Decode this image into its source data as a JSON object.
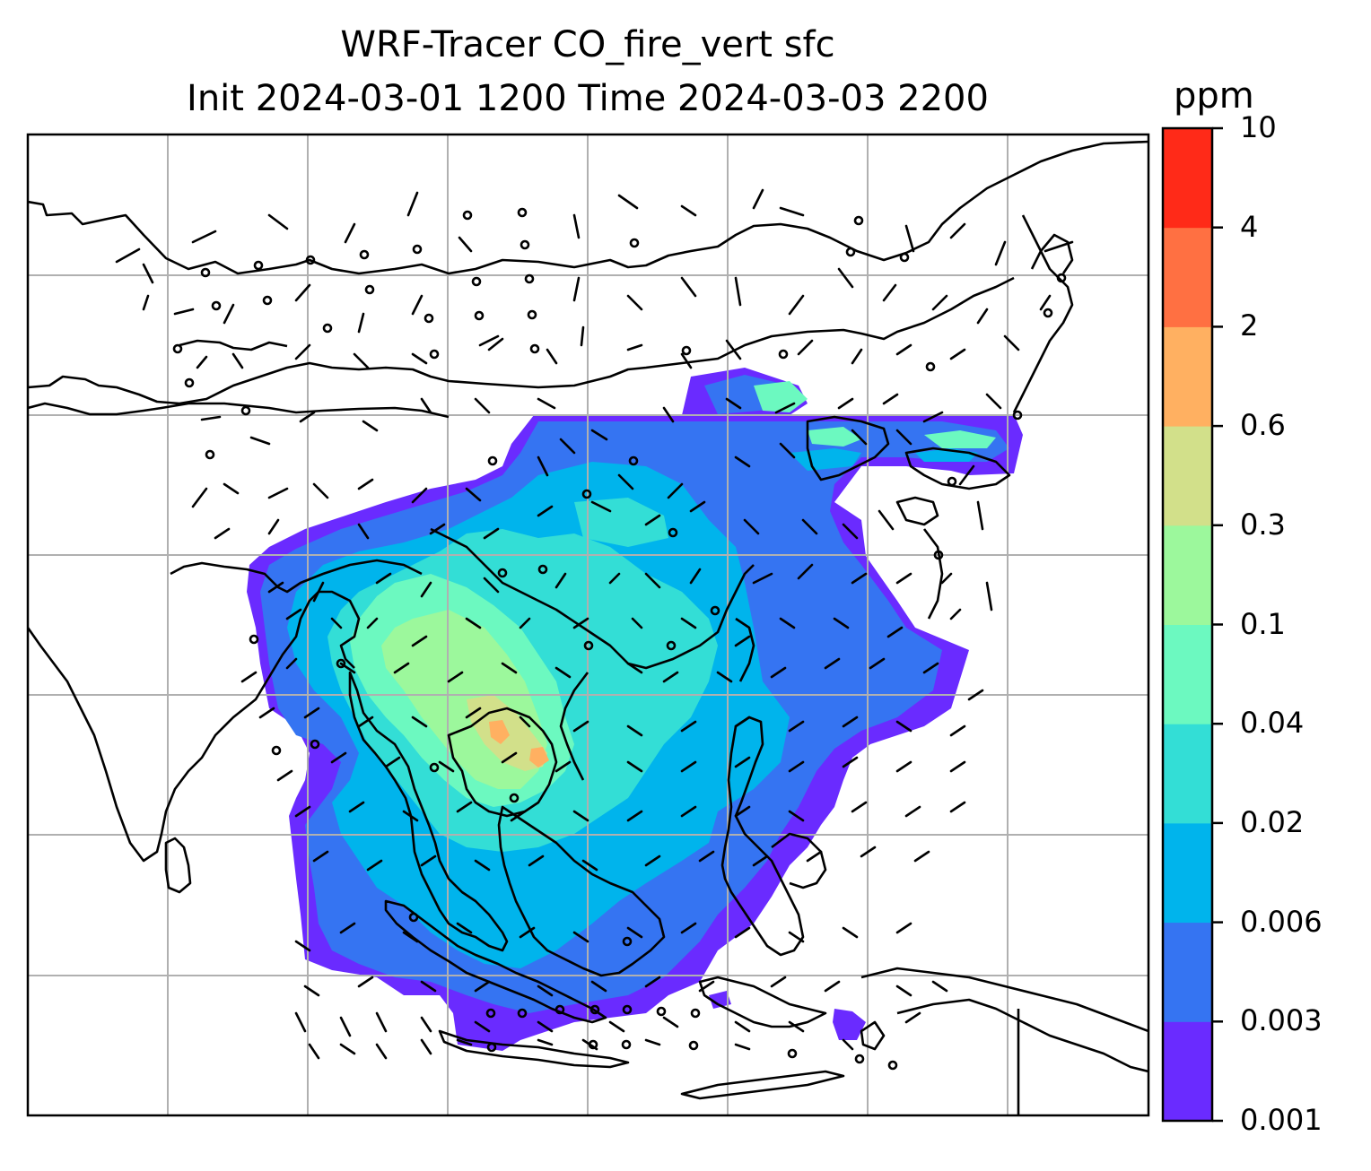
{
  "title": {
    "line1": "WRF-Tracer CO_fire_vert sfc",
    "line2": "Init 2024-03-01 1200 Time 2024-03-03 2200"
  },
  "colorbar": {
    "unit": "ppm",
    "levels": [
      "0.001",
      "0.003",
      "0.006",
      "0.02",
      "0.04",
      "0.1",
      "0.3",
      "0.6",
      "2",
      "4",
      "10"
    ],
    "colors": [
      "#6a2bff",
      "#3574f2",
      "#00b4ec",
      "#33ded6",
      "#6cf9c0",
      "#9cf89c",
      "#d2e08a",
      "#ffb061",
      "#ff7042",
      "#ff2a18"
    ]
  },
  "map": {
    "field": "CO_fire_vert",
    "layers": [
      "filled-contours",
      "wind-barbs",
      "coastlines",
      "gridlines"
    ]
  }
}
